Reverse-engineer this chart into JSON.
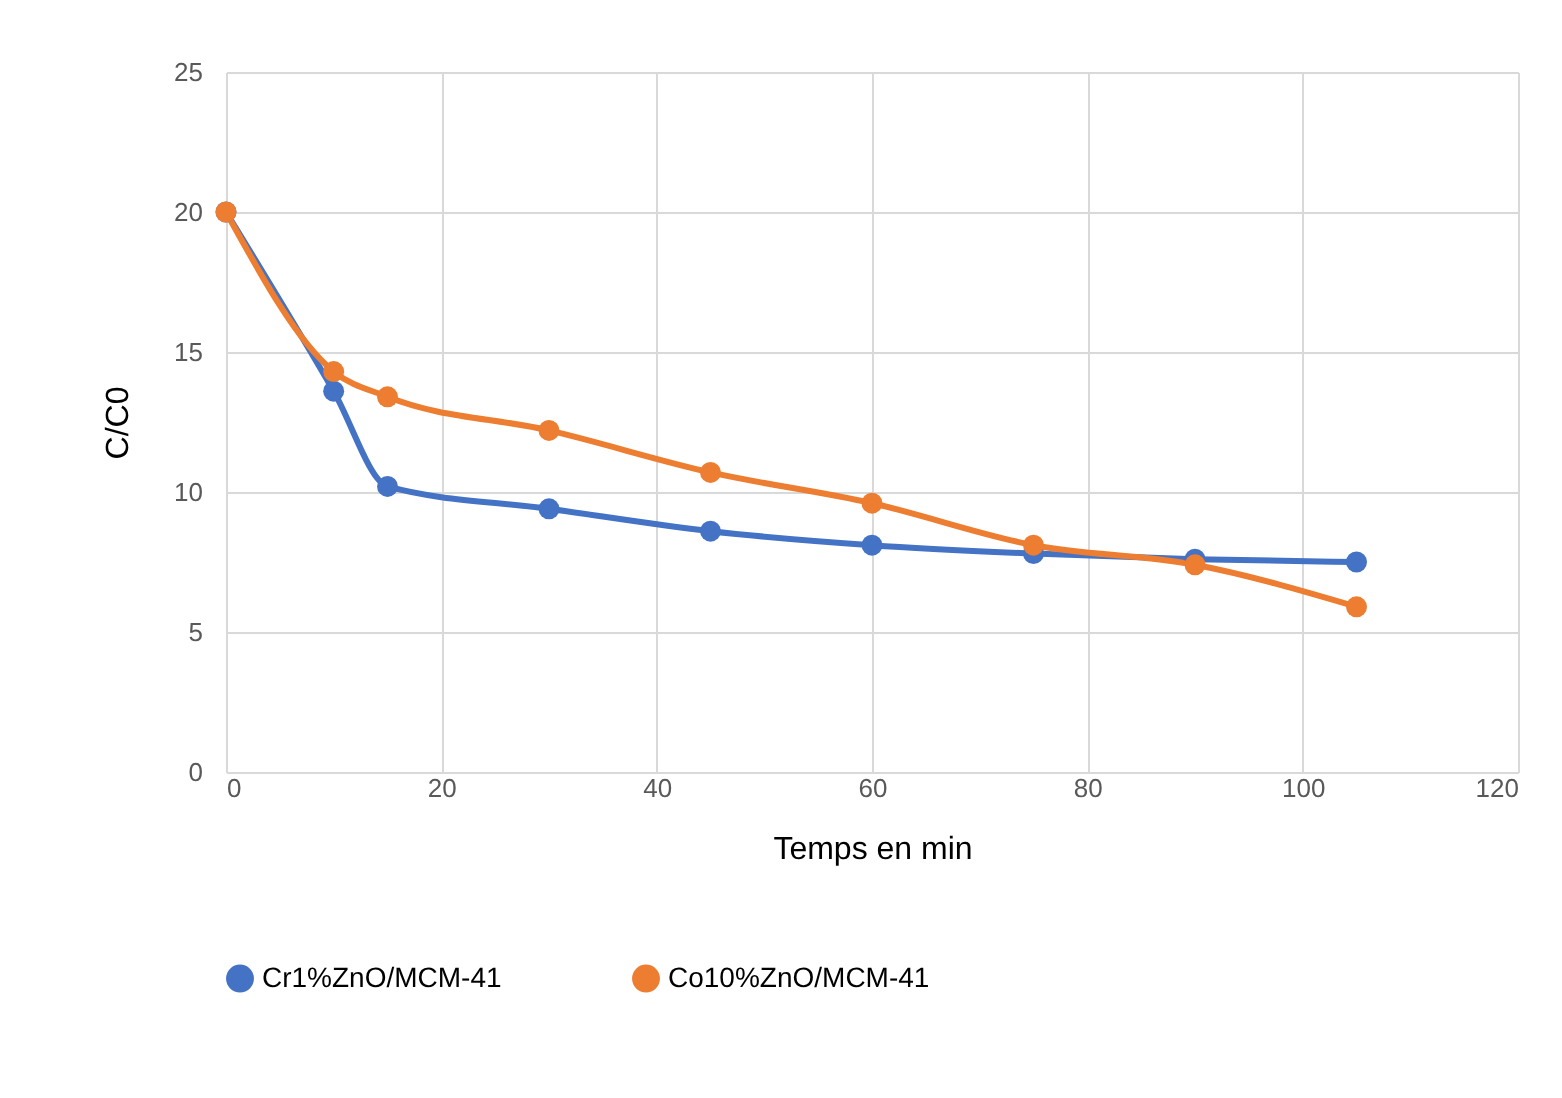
{
  "chart_data": {
    "type": "line",
    "xlabel": "Temps en min",
    "ylabel": "C/C0",
    "x": [
      0,
      10,
      15,
      30,
      45,
      60,
      75,
      90,
      105
    ],
    "series": [
      {
        "name": "Cr1%ZnO/MCM-41",
        "color": "#4472c4",
        "values": [
          20,
          13.6,
          10.2,
          9.4,
          8.6,
          8.1,
          7.8,
          7.6,
          7.5
        ]
      },
      {
        "name": "Co10%ZnO/MCM-41",
        "color": "#ed7d31",
        "values": [
          20,
          14.3,
          13.4,
          12.2,
          10.7,
          9.6,
          8.1,
          7.4,
          5.9
        ]
      }
    ],
    "xlim": [
      0,
      120
    ],
    "xticks": [
      0,
      20,
      40,
      60,
      80,
      100,
      120
    ],
    "ylim": [
      0,
      25
    ],
    "yticks": [
      0,
      5,
      10,
      15,
      20,
      25
    ],
    "grid": true,
    "legend": "bottom",
    "marker": "circle",
    "line_style": "solid"
  }
}
